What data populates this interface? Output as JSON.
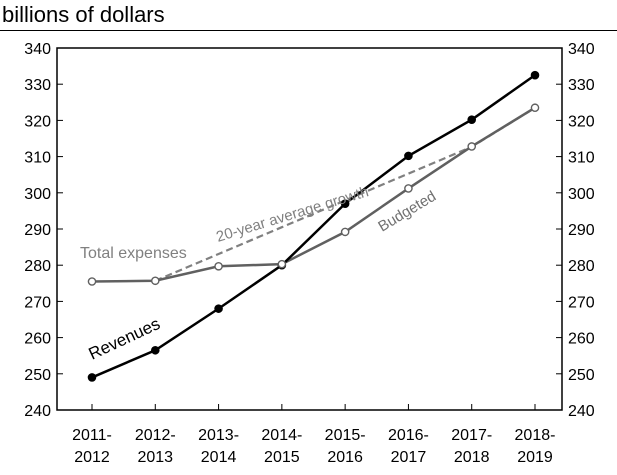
{
  "chart_data": {
    "type": "line",
    "title": "billions of dollars",
    "categories": [
      "2011–2012",
      "2012–2013",
      "2013–2014",
      "2014–2015",
      "2015–2016",
      "2016–2017",
      "2017–2018",
      "2018–2019"
    ],
    "category_lines": [
      [
        "2011-",
        "2012"
      ],
      [
        "2012-",
        "2013"
      ],
      [
        "2013-",
        "2014"
      ],
      [
        "2014-",
        "2015"
      ],
      [
        "2015-",
        "2016"
      ],
      [
        "2016-",
        "2017"
      ],
      [
        "2017-",
        "2018"
      ],
      [
        "2018-",
        "2019"
      ]
    ],
    "ylim": [
      240,
      340
    ],
    "yticks": [
      240,
      250,
      260,
      270,
      280,
      290,
      300,
      310,
      320,
      330,
      340
    ],
    "series": [
      {
        "name": "Revenues",
        "color": "#000000",
        "marker": "filled-circle",
        "values": [
          249.0,
          256.5,
          268.0,
          280.0,
          297.0,
          310.2,
          320.2,
          332.5
        ]
      },
      {
        "name": "Total expenses",
        "color": "#606060",
        "marker": "open-circle",
        "values": [
          275.5,
          275.7,
          279.7,
          280.3,
          289.2,
          301.2,
          312.8,
          323.5
        ]
      },
      {
        "name": "20-year average growth",
        "color": "#808080",
        "style": "dashed",
        "x_start_index": 1,
        "values": [
          null,
          275.7,
          283.1,
          290.5,
          297.9,
          305.3,
          312.7,
          323.5
        ]
      }
    ],
    "annotations": [
      "Total expenses",
      "20-year average growth",
      "Budgeted",
      "Revenues"
    ],
    "grid": false,
    "right_axis": true
  }
}
